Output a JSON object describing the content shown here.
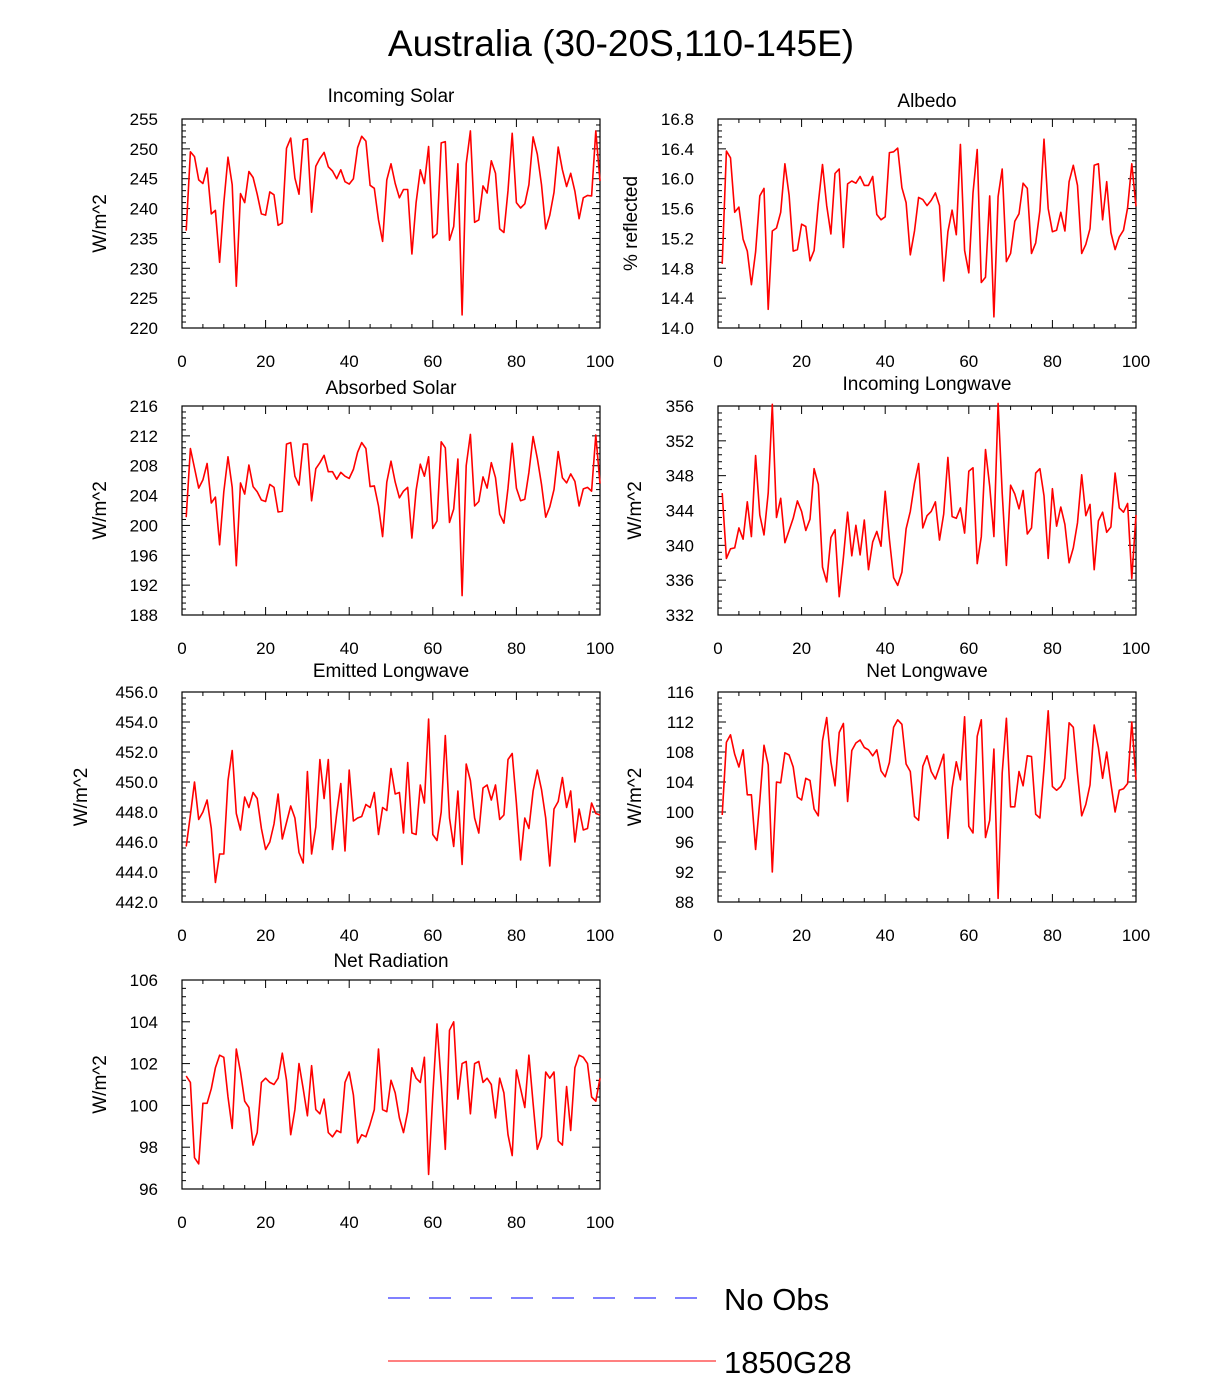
{
  "figure_title": "Australia (30-20S,110-145E)",
  "legend": [
    {
      "label": "No Obs",
      "color": "#0000ff",
      "dash": true
    },
    {
      "label": "1850G28",
      "color": "#ff0000",
      "dash": false
    }
  ],
  "chart_data": [
    {
      "type": "line",
      "title": "Incoming Solar",
      "xlabel": "",
      "ylabel": "W/m^2",
      "xlim": [
        0,
        100
      ],
      "ylim": [
        220,
        255
      ],
      "xticks": [
        0,
        20,
        40,
        60,
        80,
        100
      ],
      "yticks": [
        220,
        225,
        230,
        235,
        240,
        245,
        250,
        255
      ],
      "ytick_labels": [
        "220",
        "225",
        "230",
        "235",
        "240",
        "245",
        "250",
        "255"
      ],
      "series": [
        {
          "name": "1850G28",
          "color": "#ff0000",
          "values": [
            236.3,
            249.5,
            248.7,
            244.8,
            244.2,
            246.8,
            239.1,
            239.7,
            231.0,
            240.9,
            248.6,
            244.0,
            227.0,
            242.5,
            241.0,
            246.2,
            245.2,
            242.4,
            239.1,
            238.9,
            242.8,
            242.3,
            237.2,
            237.6,
            250.1,
            251.8,
            245.1,
            242.4,
            251.5,
            251.7,
            239.4,
            247.1,
            248.4,
            249.4,
            247.0,
            246.3,
            245.0,
            246.5,
            244.5,
            244.1,
            245.0,
            250.2,
            252.1,
            251.3,
            243.9,
            243.4,
            238.1,
            234.5,
            244.8,
            247.5,
            244.2,
            241.8,
            243.2,
            243.2,
            232.4,
            241.0,
            246.5,
            244.2,
            250.4,
            235.1,
            235.8,
            251.0,
            251.2,
            234.7,
            237.0,
            247.5,
            222.2,
            247.5,
            253.0,
            237.7,
            238.1,
            243.8,
            242.6,
            248.0,
            245.9,
            236.6,
            236.0,
            243.0,
            252.6,
            241.0,
            240.1,
            240.8,
            244.0,
            252.0,
            249.1,
            244.0,
            236.6,
            238.9,
            242.7,
            250.3,
            246.5,
            243.7,
            245.9,
            242.9,
            238.3,
            241.8,
            242.2,
            242.1,
            253.0,
            244.6
          ]
        }
      ]
    },
    {
      "type": "line",
      "title": "Albedo",
      "xlabel": "",
      "ylabel": "% reflected",
      "xlim": [
        0,
        100
      ],
      "ylim": [
        14.0,
        16.8
      ],
      "xticks": [
        0,
        20,
        40,
        60,
        80,
        100
      ],
      "yticks": [
        14.0,
        14.4,
        14.8,
        15.2,
        15.6,
        16.0,
        16.4,
        16.8
      ],
      "ytick_labels": [
        "14.0",
        "14.4",
        "14.8",
        "15.2",
        "15.6",
        "16.0",
        "16.4",
        "16.8"
      ],
      "series": [
        {
          "name": "1850G28",
          "color": "#ff0000",
          "values": [
            14.86,
            16.37,
            16.28,
            15.55,
            15.62,
            15.19,
            15.03,
            14.58,
            15.02,
            15.77,
            15.87,
            14.25,
            15.3,
            15.34,
            15.55,
            16.2,
            15.78,
            15.03,
            15.05,
            15.39,
            15.36,
            14.9,
            15.04,
            15.67,
            16.19,
            15.64,
            15.26,
            16.07,
            16.13,
            15.08,
            15.93,
            15.97,
            15.94,
            16.03,
            15.91,
            15.91,
            16.03,
            15.52,
            15.45,
            15.49,
            16.35,
            16.36,
            16.41,
            15.88,
            15.68,
            14.98,
            15.3,
            15.75,
            15.72,
            15.64,
            15.71,
            15.81,
            15.64,
            14.63,
            15.29,
            15.58,
            15.25,
            16.46,
            15.04,
            14.74,
            15.81,
            16.39,
            14.61,
            14.68,
            15.77,
            14.15,
            15.76,
            16.13,
            14.89,
            15.0,
            15.43,
            15.53,
            15.94,
            15.87,
            15.0,
            15.14,
            15.57,
            16.53,
            15.6,
            15.29,
            15.31,
            15.55,
            15.3,
            15.96,
            16.18,
            15.91,
            15.0,
            15.12,
            15.33,
            16.18,
            16.2,
            15.45,
            15.96,
            15.28,
            15.05,
            15.22,
            15.31,
            15.61,
            16.2,
            15.63
          ]
        }
      ]
    },
    {
      "type": "line",
      "title": "Absorbed Solar",
      "xlabel": "",
      "ylabel": "W/m^2",
      "xlim": [
        0,
        100
      ],
      "ylim": [
        188,
        216
      ],
      "xticks": [
        0,
        20,
        40,
        60,
        80,
        100
      ],
      "yticks": [
        188,
        192,
        196,
        200,
        204,
        208,
        212,
        216
      ],
      "ytick_labels": [
        "188",
        "192",
        "196",
        "200",
        "204",
        "208",
        "212",
        "216"
      ],
      "series": [
        {
          "name": "1850G28",
          "color": "#ff0000",
          "values": [
            201.1,
            210.3,
            207.7,
            205.0,
            206.1,
            208.3,
            203.0,
            203.8,
            197.4,
            204.5,
            209.2,
            205.1,
            194.6,
            205.7,
            204.2,
            208.1,
            205.2,
            204.5,
            203.4,
            203.2,
            205.5,
            205.1,
            201.8,
            201.9,
            210.9,
            211.1,
            206.6,
            205.4,
            210.9,
            210.9,
            203.3,
            207.6,
            208.4,
            209.4,
            207.2,
            207.2,
            206.2,
            207.1,
            206.6,
            206.3,
            207.5,
            209.8,
            211.1,
            210.3,
            205.2,
            205.3,
            202.6,
            198.5,
            205.8,
            208.6,
            205.8,
            203.7,
            204.6,
            205.1,
            198.3,
            204.7,
            208.2,
            206.6,
            209.2,
            199.6,
            200.6,
            211.2,
            210.4,
            200.4,
            202.2,
            208.9,
            190.6,
            208.0,
            212.2,
            202.6,
            203.2,
            206.5,
            205.0,
            208.4,
            206.4,
            201.5,
            200.3,
            205.0,
            211.0,
            205.0,
            203.3,
            203.5,
            207.1,
            211.9,
            209.0,
            205.5,
            201.1,
            202.5,
            204.8,
            209.9,
            206.4,
            205.7,
            206.9,
            205.9,
            202.6,
            204.9,
            205.1,
            204.6,
            212.1,
            205.6
          ]
        }
      ]
    },
    {
      "type": "line",
      "title": "Incoming Longwave",
      "xlabel": "",
      "ylabel": "W/m^2",
      "xlim": [
        0,
        100
      ],
      "ylim": [
        332,
        356
      ],
      "xticks": [
        0,
        20,
        40,
        60,
        80,
        100
      ],
      "yticks": [
        332,
        336,
        340,
        344,
        348,
        352,
        356
      ],
      "ytick_labels": [
        "332",
        "336",
        "340",
        "344",
        "348",
        "352",
        "356"
      ],
      "series": [
        {
          "name": "1850G28",
          "color": "#ff0000",
          "values": [
            346.0,
            338.5,
            339.6,
            339.7,
            342.0,
            340.7,
            345.0,
            341.0,
            350.3,
            343.5,
            341.2,
            346.0,
            356.2,
            343.2,
            345.4,
            340.3,
            341.7,
            343.1,
            345.1,
            343.9,
            341.7,
            343.0,
            348.8,
            347.0,
            337.5,
            335.8,
            340.9,
            341.8,
            334.1,
            338.6,
            343.8,
            338.8,
            342.3,
            338.9,
            342.9,
            337.2,
            340.4,
            341.6,
            339.9,
            346.2,
            340.7,
            336.3,
            335.4,
            336.9,
            341.9,
            343.9,
            347.1,
            349.4,
            342.0,
            343.4,
            343.9,
            345.0,
            340.6,
            343.6,
            350.1,
            343.3,
            343.1,
            344.3,
            341.4,
            348.5,
            348.9,
            337.9,
            341.0,
            351.0,
            346.8,
            341.0,
            356.3,
            346.0,
            337.7,
            346.9,
            345.9,
            344.2,
            346.3,
            341.3,
            342.0,
            348.3,
            348.8,
            345.7,
            338.5,
            346.5,
            342.2,
            344.4,
            342.4,
            338.0,
            339.7,
            342.6,
            348.1,
            343.4,
            344.7,
            337.2,
            342.8,
            343.8,
            341.5,
            342.1,
            348.3,
            344.3,
            343.8,
            344.8,
            336.2,
            343.5
          ]
        }
      ]
    },
    {
      "type": "line",
      "title": "Emitted Longwave",
      "xlabel": "",
      "ylabel": "W/m^2",
      "xlim": [
        0,
        100
      ],
      "ylim": [
        442.0,
        456.0
      ],
      "xticks": [
        0,
        20,
        40,
        60,
        80,
        100
      ],
      "yticks": [
        442,
        444,
        446,
        448,
        450,
        452,
        454,
        456
      ],
      "ytick_labels": [
        "442.0",
        "444.0",
        "446.0",
        "448.0",
        "450.0",
        "452.0",
        "454.0",
        "456.0"
      ],
      "series": [
        {
          "name": "1850G28",
          "color": "#ff0000",
          "values": [
            445.7,
            447.8,
            450.0,
            447.5,
            448.0,
            448.8,
            446.9,
            443.3,
            445.2,
            445.2,
            450.1,
            452.1,
            447.9,
            446.8,
            449.0,
            448.3,
            449.3,
            448.9,
            446.9,
            445.5,
            446.0,
            447.2,
            449.2,
            446.2,
            447.3,
            448.4,
            447.6,
            445.3,
            444.6,
            450.7,
            445.2,
            447.0,
            451.5,
            448.9,
            451.5,
            445.5,
            447.9,
            449.9,
            445.4,
            450.8,
            447.4,
            447.6,
            447.7,
            448.5,
            448.3,
            449.3,
            446.5,
            448.3,
            448.1,
            450.9,
            449.2,
            449.3,
            446.6,
            451.3,
            446.6,
            446.5,
            449.8,
            448.6,
            454.2,
            446.5,
            446.1,
            448.0,
            453.1,
            447.6,
            445.7,
            449.4,
            444.5,
            451.2,
            450.1,
            447.6,
            446.6,
            449.6,
            449.8,
            448.8,
            449.8,
            447.5,
            447.8,
            451.5,
            451.9,
            448.6,
            444.8,
            447.6,
            446.9,
            449.4,
            450.8,
            449.5,
            447.6,
            444.4,
            448.2,
            448.7,
            450.3,
            448.3,
            449.4,
            446.0,
            448.2,
            446.8,
            446.9,
            448.6,
            447.9,
            447.8
          ]
        }
      ]
    },
    {
      "type": "line",
      "title": "Net Longwave",
      "xlabel": "",
      "ylabel": "W/m^2",
      "xlim": [
        0,
        100
      ],
      "ylim": [
        88,
        116
      ],
      "xticks": [
        0,
        20,
        40,
        60,
        80,
        100
      ],
      "yticks": [
        88,
        92,
        96,
        100,
        104,
        108,
        112,
        116
      ],
      "ytick_labels": [
        "88",
        "92",
        "96",
        "100",
        "104",
        "108",
        "112",
        "116"
      ],
      "series": [
        {
          "name": "1850G28",
          "color": "#ff0000",
          "values": [
            99.6,
            109.3,
            110.3,
            107.7,
            106.0,
            108.3,
            102.3,
            102.3,
            95.0,
            101.5,
            108.9,
            106.3,
            92.0,
            104.0,
            103.9,
            107.9,
            107.6,
            106.0,
            102.0,
            101.6,
            104.5,
            104.2,
            100.4,
            99.5,
            109.5,
            112.6,
            106.7,
            103.5,
            110.6,
            111.8,
            101.4,
            108.2,
            109.2,
            109.6,
            108.6,
            108.3,
            107.5,
            108.3,
            105.5,
            104.7,
            106.6,
            111.3,
            112.3,
            111.7,
            106.4,
            105.4,
            99.4,
            98.9,
            106.1,
            107.5,
            105.4,
            104.4,
            106.0,
            107.7,
            96.5,
            103.2,
            106.7,
            104.3,
            112.7,
            98.1,
            97.2,
            110.1,
            112.3,
            96.6,
            98.9,
            108.4,
            88.5,
            105.2,
            112.5,
            100.7,
            100.7,
            105.4,
            103.5,
            107.5,
            107.4,
            99.7,
            99.2,
            105.8,
            113.5,
            103.4,
            102.9,
            103.4,
            104.5,
            111.9,
            111.3,
            105.1,
            99.5,
            101.0,
            103.6,
            111.6,
            108.6,
            104.5,
            108.0,
            103.8,
            100.0,
            102.9,
            103.1,
            103.8,
            112.0,
            104.3
          ]
        }
      ]
    },
    {
      "type": "line",
      "title": "Net Radiation",
      "xlabel": "",
      "ylabel": "W/m^2",
      "xlim": [
        0,
        100
      ],
      "ylim": [
        96,
        106
      ],
      "xticks": [
        0,
        20,
        40,
        60,
        80,
        100
      ],
      "yticks": [
        96,
        98,
        100,
        102,
        104,
        106
      ],
      "ytick_labels": [
        "96",
        "98",
        "100",
        "102",
        "104",
        "106"
      ],
      "series": [
        {
          "name": "1850G28",
          "color": "#ff0000",
          "values": [
            101.4,
            101.1,
            97.5,
            97.2,
            100.1,
            100.1,
            100.8,
            101.8,
            102.4,
            102.3,
            100.4,
            98.9,
            102.7,
            101.6,
            100.2,
            99.9,
            98.1,
            98.7,
            101.1,
            101.3,
            101.1,
            101.0,
            101.3,
            102.5,
            101.2,
            98.6,
            99.8,
            102.0,
            100.8,
            99.5,
            101.9,
            99.8,
            99.6,
            100.3,
            98.7,
            98.5,
            98.8,
            98.7,
            101.1,
            101.6,
            100.5,
            98.2,
            98.6,
            98.5,
            99.1,
            99.8,
            102.7,
            99.8,
            99.7,
            101.2,
            100.6,
            99.4,
            98.7,
            99.7,
            101.8,
            101.3,
            101.1,
            102.3,
            96.7,
            100.5,
            103.9,
            101.1,
            97.9,
            103.6,
            104.0,
            100.3,
            102.0,
            102.1,
            99.6,
            102.0,
            102.1,
            101.1,
            101.3,
            101.0,
            99.4,
            101.3,
            100.6,
            98.6,
            97.6,
            101.7,
            100.8,
            99.9,
            102.4,
            100.1,
            97.9,
            98.5,
            101.6,
            101.3,
            101.6,
            98.3,
            98.1,
            100.9,
            98.8,
            101.8,
            102.4,
            102.3,
            102.0,
            100.4,
            100.2,
            101.3
          ]
        }
      ]
    }
  ]
}
